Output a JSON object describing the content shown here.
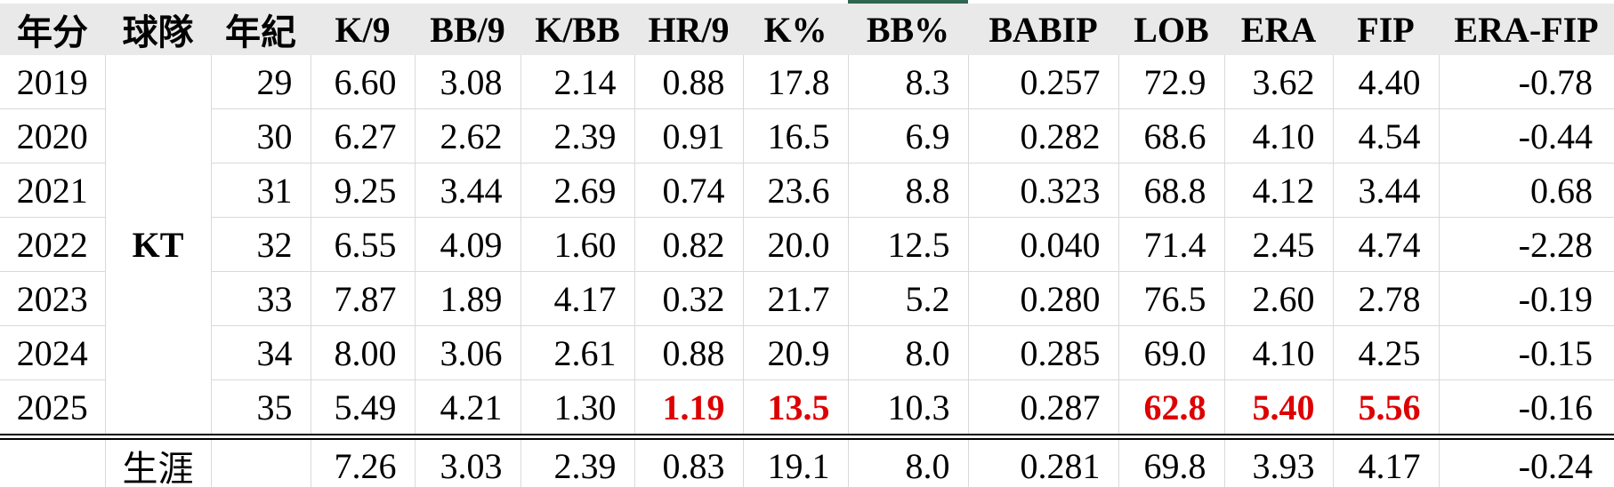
{
  "table": {
    "header_background": "#e9e9e9",
    "red_highlight_color": "#dd0000",
    "selection_bar": {
      "column_key": "bbpct",
      "column_label": "BB%",
      "color": "#2f6650"
    },
    "columns": [
      {
        "key": "year",
        "label": "年分"
      },
      {
        "key": "team",
        "label": "球隊"
      },
      {
        "key": "age",
        "label": "年紀"
      },
      {
        "key": "k9",
        "label": "K/9"
      },
      {
        "key": "bb9",
        "label": "BB/9"
      },
      {
        "key": "kbb",
        "label": "K/BB"
      },
      {
        "key": "hr9",
        "label": "HR/9"
      },
      {
        "key": "kpct",
        "label": "K%"
      },
      {
        "key": "bbpct",
        "label": "BB%"
      },
      {
        "key": "babip",
        "label": "BABIP"
      },
      {
        "key": "lob",
        "label": "LOB"
      },
      {
        "key": "era",
        "label": "ERA"
      },
      {
        "key": "fip",
        "label": "FIP"
      },
      {
        "key": "era_fip",
        "label": "ERA-FIP"
      }
    ],
    "team": "KT",
    "rows": [
      {
        "year": "2019",
        "age": "29",
        "k9": "6.60",
        "bb9": "3.08",
        "kbb": "2.14",
        "hr9": "0.88",
        "kpct": "17.8",
        "bbpct": "8.3",
        "babip": "0.257",
        "lob": "72.9",
        "era": "3.62",
        "fip": "4.40",
        "era_fip": "-0.78",
        "red_keys": []
      },
      {
        "year": "2020",
        "age": "30",
        "k9": "6.27",
        "bb9": "2.62",
        "kbb": "2.39",
        "hr9": "0.91",
        "kpct": "16.5",
        "bbpct": "6.9",
        "babip": "0.282",
        "lob": "68.6",
        "era": "4.10",
        "fip": "4.54",
        "era_fip": "-0.44",
        "red_keys": []
      },
      {
        "year": "2021",
        "age": "31",
        "k9": "9.25",
        "bb9": "3.44",
        "kbb": "2.69",
        "hr9": "0.74",
        "kpct": "23.6",
        "bbpct": "8.8",
        "babip": "0.323",
        "lob": "68.8",
        "era": "4.12",
        "fip": "3.44",
        "era_fip": "0.68",
        "red_keys": []
      },
      {
        "year": "2022",
        "age": "32",
        "k9": "6.55",
        "bb9": "4.09",
        "kbb": "1.60",
        "hr9": "0.82",
        "kpct": "20.0",
        "bbpct": "12.5",
        "babip": "0.040",
        "lob": "71.4",
        "era": "2.45",
        "fip": "4.74",
        "era_fip": "-2.28",
        "red_keys": []
      },
      {
        "year": "2023",
        "age": "33",
        "k9": "7.87",
        "bb9": "1.89",
        "kbb": "4.17",
        "hr9": "0.32",
        "kpct": "21.7",
        "bbpct": "5.2",
        "babip": "0.280",
        "lob": "76.5",
        "era": "2.60",
        "fip": "2.78",
        "era_fip": "-0.19",
        "red_keys": []
      },
      {
        "year": "2024",
        "age": "34",
        "k9": "8.00",
        "bb9": "3.06",
        "kbb": "2.61",
        "hr9": "0.88",
        "kpct": "20.9",
        "bbpct": "8.0",
        "babip": "0.285",
        "lob": "69.0",
        "era": "4.10",
        "fip": "4.25",
        "era_fip": "-0.15",
        "red_keys": []
      },
      {
        "year": "2025",
        "age": "35",
        "k9": "5.49",
        "bb9": "4.21",
        "kbb": "1.30",
        "hr9": "1.19",
        "kpct": "13.5",
        "bbpct": "10.3",
        "babip": "0.287",
        "lob": "62.8",
        "era": "5.40",
        "fip": "5.56",
        "era_fip": "-0.16",
        "red_keys": [
          "hr9",
          "kpct",
          "lob",
          "era",
          "fip"
        ]
      }
    ],
    "career": {
      "label": "生涯",
      "age": "",
      "k9": "7.26",
      "bb9": "3.03",
      "kbb": "2.39",
      "hr9": "0.83",
      "kpct": "19.1",
      "bbpct": "8.0",
      "babip": "0.281",
      "lob": "69.8",
      "era": "3.93",
      "fip": "4.17",
      "era_fip": "-0.24"
    }
  }
}
